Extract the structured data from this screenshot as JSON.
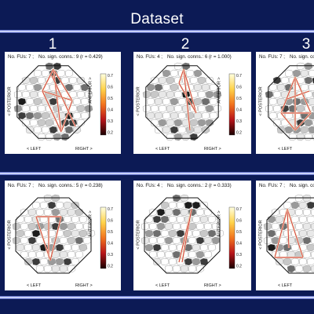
{
  "header": {
    "title": "Dataset"
  },
  "columns": [
    "1",
    "2",
    "3"
  ],
  "labels": {
    "posterior": "< POSTERIOR",
    "anterior": "ANTERIOR >",
    "left": "< LEFT",
    "right": "RIGHT >"
  },
  "colorbar_ticks": [
    "0.7",
    "0.6",
    "0.5",
    "0.4",
    "0.3",
    "0.2"
  ],
  "panels": [
    {
      "fus": "No. FUs: 7 ;",
      "conns": "No. sign. conns.: 9 (r = 0.429)"
    },
    {
      "fus": "No. FUs: 4 ;",
      "conns": "No. sign. conns.: 6 (r = 1.000)"
    },
    {
      "fus": "No. FUs: 7 ;",
      "conns": "No. sign. conns.: 9"
    },
    {
      "fus": "No. FUs: 7 ;",
      "conns": "No. sign. conns.: 5 (r = 0.238)"
    },
    {
      "fus": "No. FUs: 4 ;",
      "conns": "No. sign. conns.: 2 (r = 0.333)"
    },
    {
      "fus": "No. FUs: 7 ;",
      "conns": "No. sign. conns.: 9"
    }
  ]
}
